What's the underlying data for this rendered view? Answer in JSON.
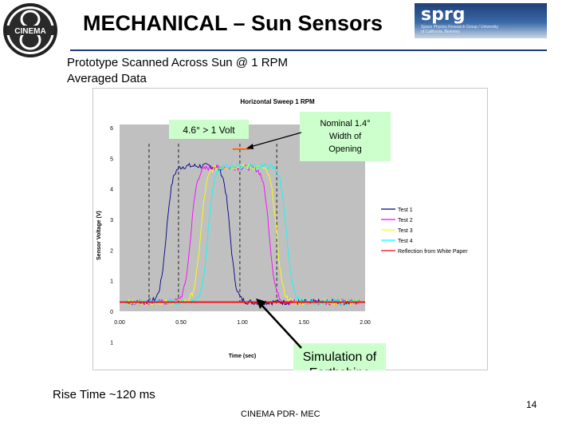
{
  "slide": {
    "title": "MECHANICAL – Sun Sensors",
    "logo_left_text": "CINEMA",
    "logo_right_word": "sprg",
    "logo_right_tagline": "Space Physics Research Group / University of California, Berkeley",
    "subtitle_line1": "Prototype Scanned Across Sun @ 1 RPM",
    "subtitle_line2": "Averaged Data",
    "rise_time": "Rise Time ~120 ms",
    "footer": "CINEMA PDR- MEC",
    "page_number": "14"
  },
  "colors": {
    "title_rule": "#1a3a7a",
    "plot_bg": "#c0c0c0",
    "annotation_box": "#ccffcc",
    "orange_marker": "#ff6600",
    "test1": "#000080",
    "test2": "#ff00ff",
    "test3": "#ffff00",
    "test4": "#00ffff",
    "white_paper": "#ff0000"
  },
  "annotations": {
    "volt_threshold": "4.6° > 1 Volt",
    "nominal_width": "Nominal 1.4° Width of Opening",
    "earthshine": "Simulation of Earthshine"
  },
  "chart_data": {
    "type": "line",
    "title": "Horizontal Sweep 1 RPM",
    "xlabel": "Time (sec)",
    "ylabel": "Sensor Voltage (V)",
    "xlim": [
      0,
      2
    ],
    "ylim": [
      0,
      6
    ],
    "x_ticks": [
      "0.00",
      "0.50",
      "1.00",
      "1.50",
      "2.00"
    ],
    "y_ticks": [
      "0",
      "1",
      "2",
      "3",
      "4",
      "5",
      "6"
    ],
    "extra_tick_below_axis": "1",
    "grid": false,
    "legend_position": "right",
    "series": [
      {
        "name": "Test 1",
        "color": "#000080",
        "rise": 0.38,
        "fall": 0.9,
        "low": 0.3,
        "high": 4.75
      },
      {
        "name": "Test 2",
        "color": "#ff00ff",
        "rise": 0.58,
        "fall": 1.22,
        "low": 0.3,
        "high": 4.7
      },
      {
        "name": "Test 3",
        "color": "#ffff00",
        "rise": 0.66,
        "fall": 1.28,
        "low": 0.3,
        "high": 4.72
      },
      {
        "name": "Test 4",
        "color": "#00ffff",
        "rise": 0.72,
        "fall": 1.36,
        "low": 0.3,
        "high": 4.74
      }
    ],
    "reference_line": {
      "name": "Reflection from White Paper",
      "color": "#ff0000",
      "y": 0.3
    },
    "dashed_markers_x": [
      0.24,
      0.48,
      0.98,
      1.28
    ],
    "threshold_marker": {
      "y": 5.3,
      "x_range": [
        0.92,
        1.06
      ]
    }
  }
}
